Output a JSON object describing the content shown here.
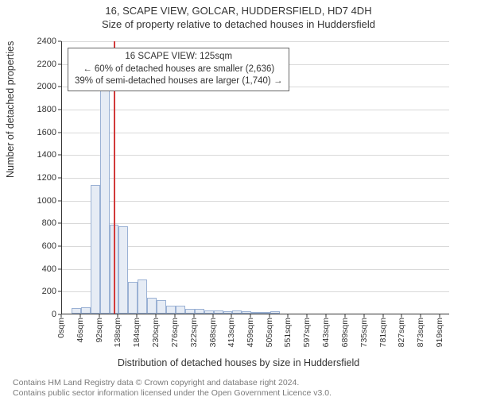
{
  "title": "16, SCAPE VIEW, GOLCAR, HUDDERSFIELD, HD7 4DH",
  "subtitle": "Size of property relative to detached houses in Huddersfield",
  "ylabel": "Number of detached properties",
  "xlabel": "Distribution of detached houses by size in Huddersfield",
  "footer_line1": "Contains HM Land Registry data © Crown copyright and database right 2024.",
  "footer_line2": "Contains public sector information licensed under the Open Government Licence v3.0.",
  "chart": {
    "type": "histogram",
    "background_color": "#ffffff",
    "grid_color": "#d9d9d9",
    "axis_color": "#333333",
    "bar_fill": "#e6ecf5",
    "bar_border": "#9ab1d4",
    "marker_color": "#d23a3a",
    "title_fontsize": 13,
    "label_fontsize": 12.5,
    "tick_fontsize": 11,
    "ylim": [
      0,
      2400
    ],
    "yticks": [
      0,
      200,
      400,
      600,
      800,
      1000,
      1200,
      1400,
      1600,
      1800,
      2000,
      2200,
      2400
    ],
    "xmax_sqm": 942,
    "xticks_sqm": [
      0,
      46,
      92,
      138,
      184,
      230,
      276,
      322,
      368,
      413,
      459,
      505,
      551,
      597,
      643,
      689,
      735,
      781,
      827,
      873,
      919
    ],
    "xtick_labels": [
      "0sqm",
      "46sqm",
      "92sqm",
      "138sqm",
      "184sqm",
      "230sqm",
      "276sqm",
      "322sqm",
      "368sqm",
      "413sqm",
      "459sqm",
      "505sqm",
      "551sqm",
      "597sqm",
      "643sqm",
      "689sqm",
      "735sqm",
      "781sqm",
      "827sqm",
      "873sqm",
      "919sqm"
    ],
    "bar_bin_width_sqm": 23,
    "bars": [
      {
        "x_sqm": 0,
        "count": 0
      },
      {
        "x_sqm": 23,
        "count": 50
      },
      {
        "x_sqm": 46,
        "count": 55
      },
      {
        "x_sqm": 69,
        "count": 1130
      },
      {
        "x_sqm": 92,
        "count": 2280
      },
      {
        "x_sqm": 115,
        "count": 780
      },
      {
        "x_sqm": 138,
        "count": 770
      },
      {
        "x_sqm": 161,
        "count": 280
      },
      {
        "x_sqm": 184,
        "count": 300
      },
      {
        "x_sqm": 207,
        "count": 140
      },
      {
        "x_sqm": 230,
        "count": 120
      },
      {
        "x_sqm": 253,
        "count": 70
      },
      {
        "x_sqm": 276,
        "count": 70
      },
      {
        "x_sqm": 299,
        "count": 45
      },
      {
        "x_sqm": 322,
        "count": 40
      },
      {
        "x_sqm": 345,
        "count": 30
      },
      {
        "x_sqm": 368,
        "count": 30
      },
      {
        "x_sqm": 391,
        "count": 22
      },
      {
        "x_sqm": 413,
        "count": 25
      },
      {
        "x_sqm": 436,
        "count": 18
      },
      {
        "x_sqm": 459,
        "count": 12
      },
      {
        "x_sqm": 482,
        "count": 5
      },
      {
        "x_sqm": 505,
        "count": 20
      }
    ],
    "marker_sqm": 125,
    "annotation": {
      "line1": "16 SCAPE VIEW: 125sqm",
      "line2": "← 60% of detached houses are smaller (2,636)",
      "line3": "39% of semi-detached houses are larger (1,740) →",
      "border_color": "#666666",
      "bg_color": "#ffffff",
      "fontsize": 11.5
    }
  }
}
